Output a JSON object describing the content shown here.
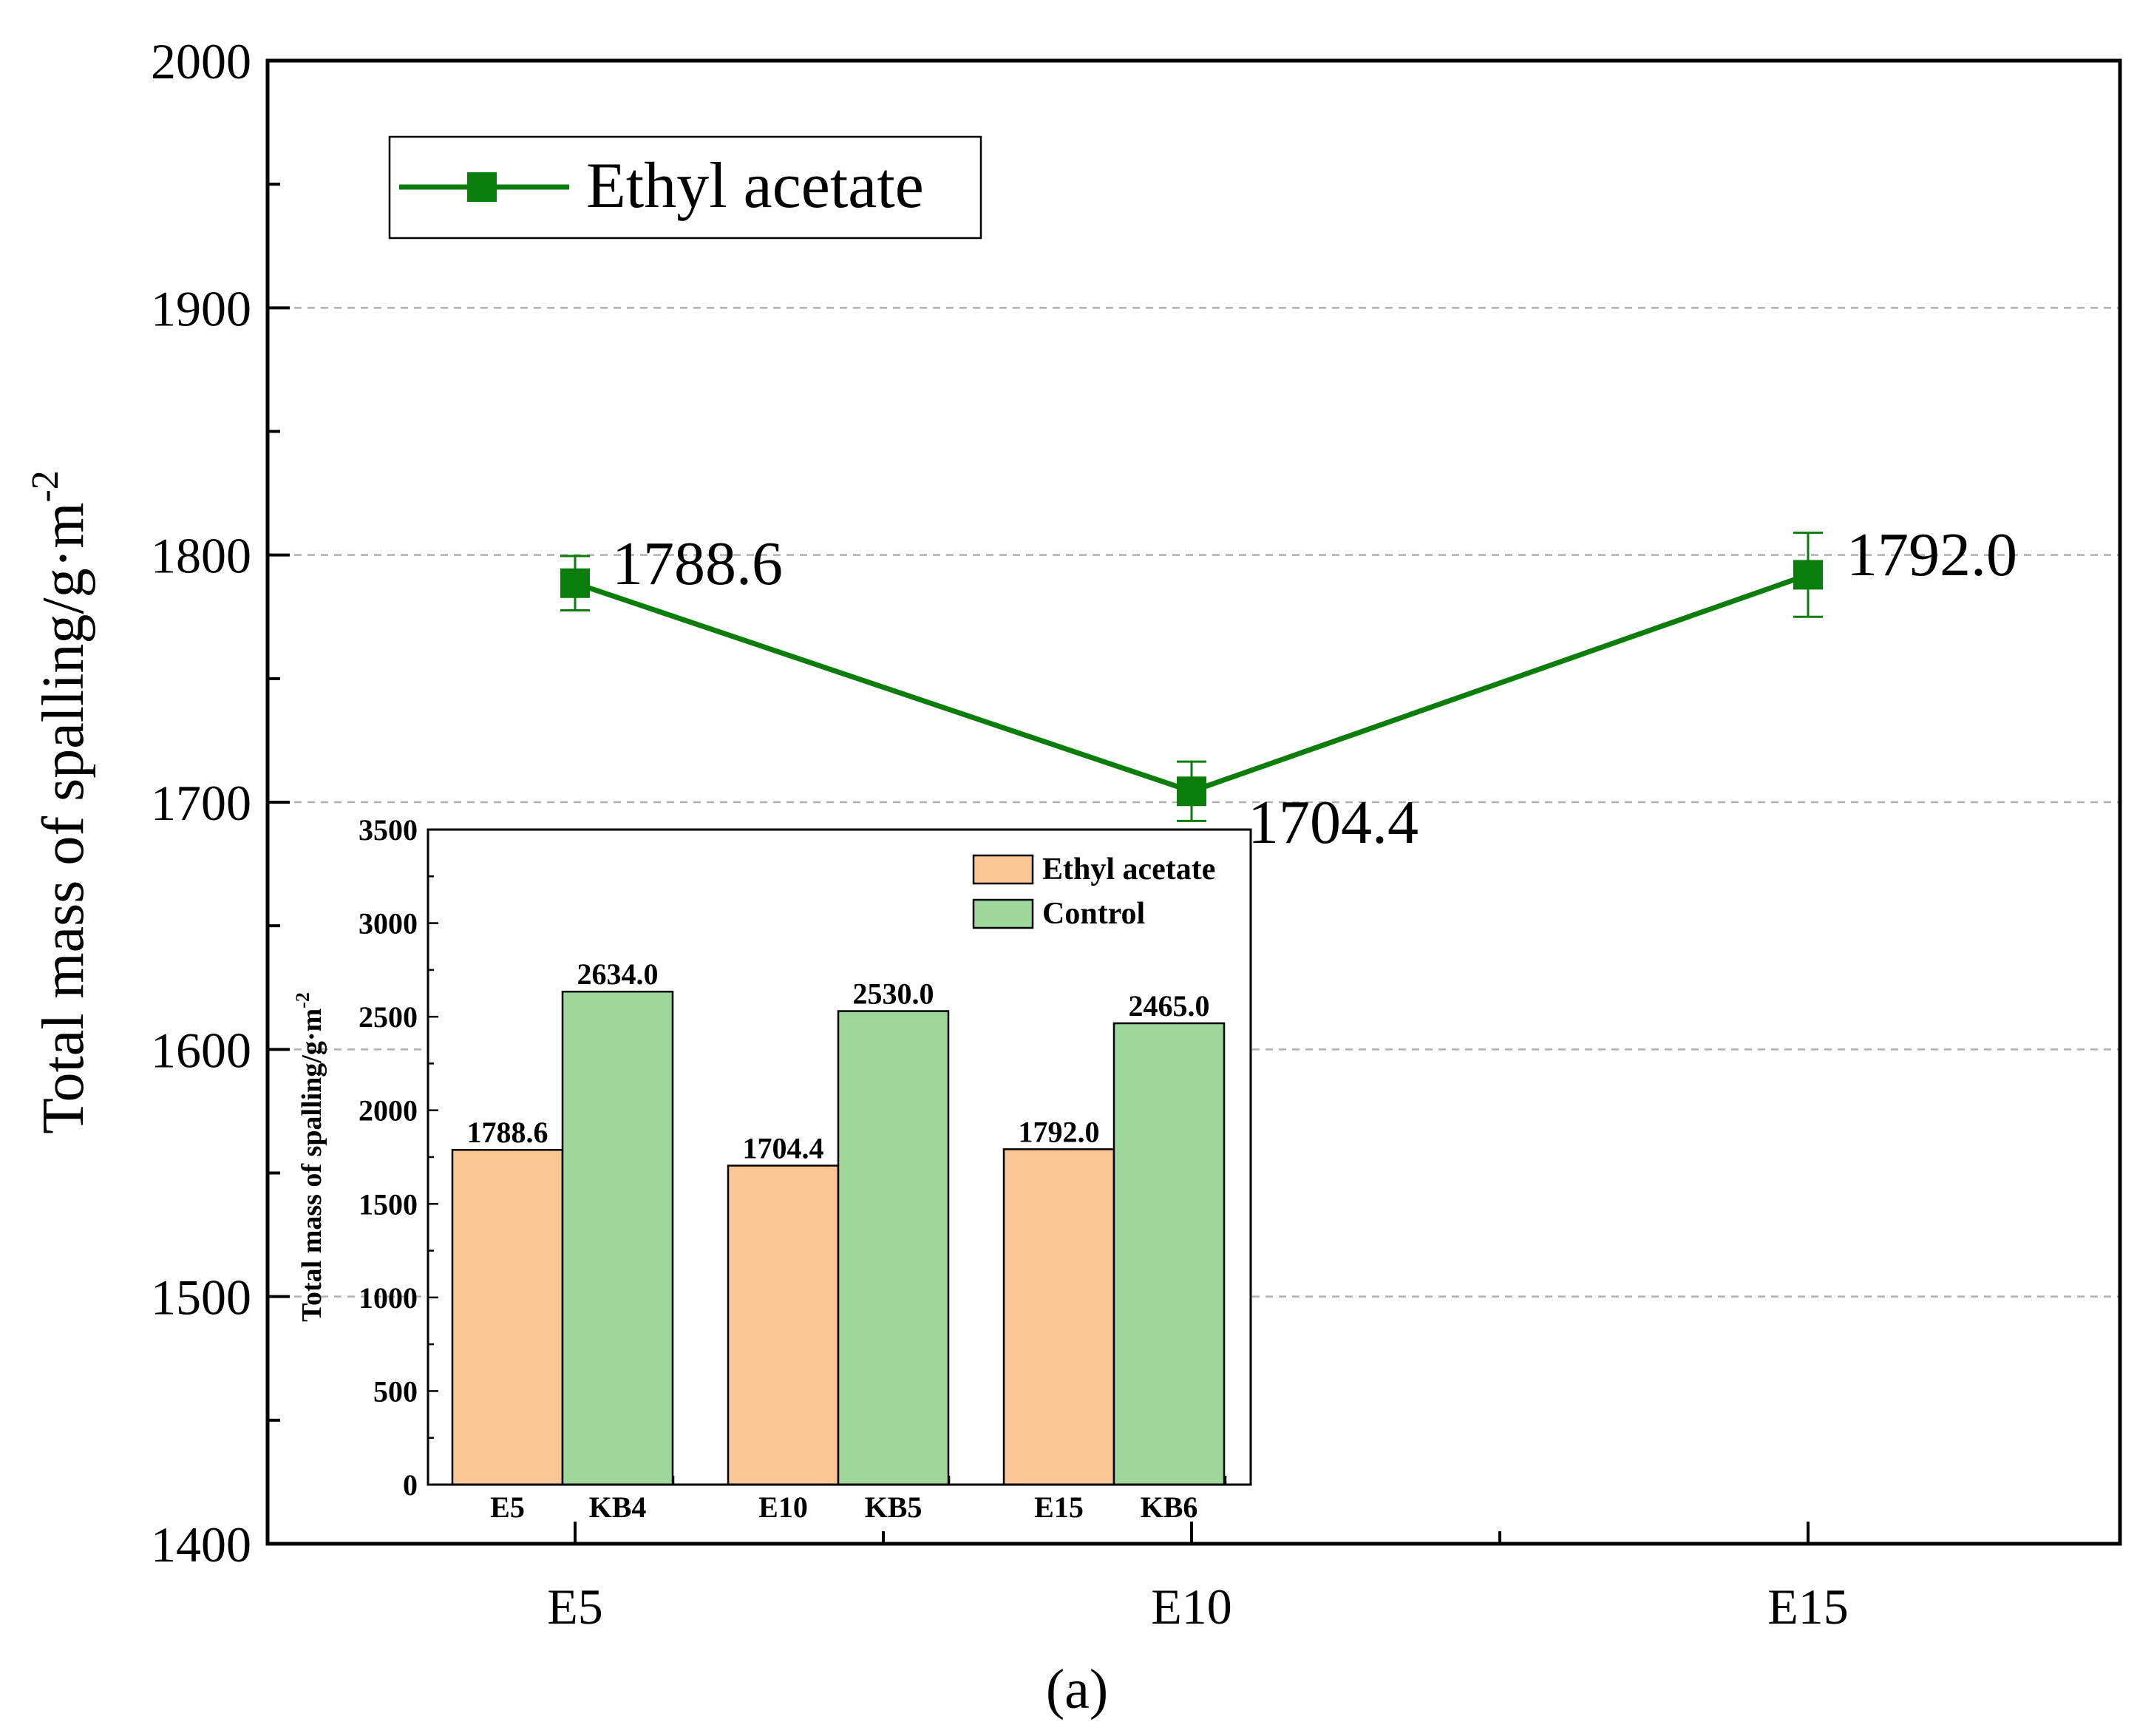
{
  "chart_data": [
    {
      "type": "line",
      "title": "",
      "xlabel": "",
      "ylabel": "Total mass of spalling/g·m",
      "ylabel_superscript": "-2",
      "categories": [
        "E5",
        "E10",
        "E15"
      ],
      "ylim": [
        1400,
        2000
      ],
      "yticks": [
        1400,
        1500,
        1600,
        1700,
        1800,
        1900,
        2000
      ],
      "grid": true,
      "legend_position": "top-left",
      "series": [
        {
          "name": "Ethyl acetate",
          "color": "#0a7d0a",
          "values": [
            1788.6,
            1704.4,
            1792.0
          ],
          "labels": [
            "1788.6",
            "1704.4",
            "1792.0"
          ],
          "errors": [
            11,
            12,
            17
          ]
        }
      ]
    },
    {
      "type": "bar",
      "ylabel": "Total mass of spalling/g·m",
      "ylabel_superscript": "-2",
      "ylim": [
        0,
        3500
      ],
      "yticks": [
        0,
        500,
        1000,
        1500,
        2000,
        2500,
        3000,
        3500
      ],
      "legend_position": "top-right",
      "groups": [
        {
          "bars": [
            {
              "label": "E5",
              "value": 1788.6,
              "text": "1788.6",
              "series": 0
            },
            {
              "label": "KB4",
              "value": 2634.0,
              "text": "2634.0",
              "series": 1
            }
          ]
        },
        {
          "bars": [
            {
              "label": "E10",
              "value": 1704.4,
              "text": "1704.4",
              "series": 0
            },
            {
              "label": "KB5",
              "value": 2530.0,
              "text": "2530.0",
              "series": 1
            }
          ]
        },
        {
          "bars": [
            {
              "label": "E15",
              "value": 1792.0,
              "text": "1792.0",
              "series": 0
            },
            {
              "label": "KB6",
              "value": 2465.0,
              "text": "2465.0",
              "series": 1
            }
          ]
        }
      ],
      "series": [
        {
          "name": "Ethyl acetate",
          "color": "#fbc696"
        },
        {
          "name": "Control",
          "color": "#9ed79b"
        }
      ]
    }
  ],
  "caption": "(a)"
}
